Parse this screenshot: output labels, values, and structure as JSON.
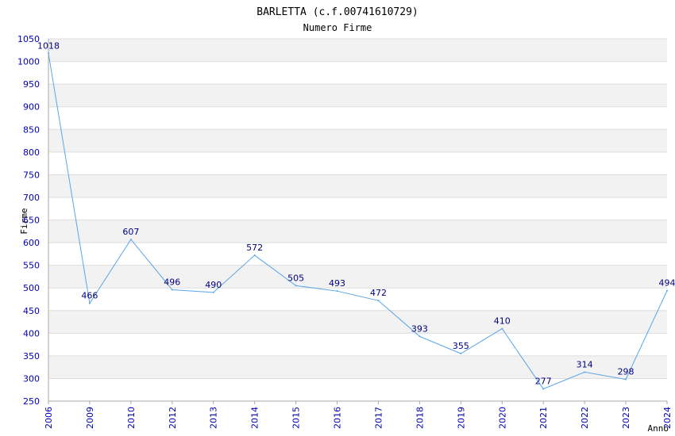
{
  "colors": {
    "background": "#ffffff",
    "band_alt": "#f2f2f2",
    "grid": "#dddddd",
    "axis": "#aaaaaa",
    "tick_text": "#0000b3",
    "data_label": "#000080",
    "line": "#5aa5e6"
  },
  "chart_data": {
    "type": "line",
    "title": "BARLETTA (c.f.00741610729)",
    "subtitle": "Numero Firme",
    "xlabel": "Anno",
    "ylabel": "Firme",
    "ylim": [
      250,
      1050
    ],
    "ytick_step": 50,
    "grid": true,
    "categories": [
      "2006",
      "2009",
      "2010",
      "2012",
      "2013",
      "2014",
      "2015",
      "2016",
      "2017",
      "2018",
      "2019",
      "2020",
      "2021",
      "2022",
      "2023",
      "2024"
    ],
    "values": [
      1018,
      466,
      607,
      496,
      490,
      572,
      505,
      493,
      472,
      393,
      355,
      410,
      277,
      314,
      298,
      494
    ],
    "data_labels": [
      "1018",
      "466",
      "607",
      "496",
      "490",
      "572",
      "505",
      "493",
      "472",
      "393",
      "355",
      "410",
      "277",
      "314",
      "298",
      "494"
    ]
  }
}
